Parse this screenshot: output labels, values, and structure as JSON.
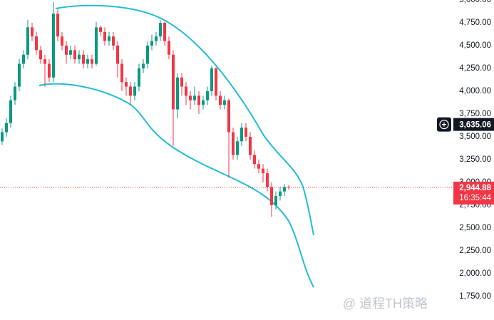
{
  "chart_data": {
    "type": "candlestick",
    "up_color": "#089981",
    "down_color": "#f23645",
    "ylim": [
      1490,
      5000
    ],
    "yticks": [
      {
        "value": 5000,
        "label": "5,000.00"
      },
      {
        "value": 4750,
        "label": "4,750.00"
      },
      {
        "value": 4500,
        "label": "4,500.00"
      },
      {
        "value": 4250,
        "label": "4,250.00"
      },
      {
        "value": 4000,
        "label": "4,000.00"
      },
      {
        "value": 3750,
        "label": "3,750.00"
      },
      {
        "value": 3500,
        "label": "3,500.00"
      },
      {
        "value": 3250,
        "label": "3,250.00"
      },
      {
        "value": 3000,
        "label": "3,000.00"
      },
      {
        "value": 2750,
        "label": "2,750.00"
      },
      {
        "value": 2500,
        "label": "2,500.00"
      },
      {
        "value": 2250,
        "label": "2,250.00"
      },
      {
        "value": 2000,
        "label": "2,000.00"
      },
      {
        "value": 1750,
        "label": "1,750.00"
      }
    ],
    "open": [
      3450,
      3550,
      3650,
      3900,
      4050,
      4300,
      4400,
      4700,
      4600,
      4450,
      4350,
      4300,
      4150,
      4850,
      4600,
      4500,
      4400,
      4450,
      4350,
      4400,
      4300,
      4350,
      4300,
      4700,
      4650,
      4550,
      4600,
      4500,
      4300,
      4100,
      4050,
      3950,
      4050,
      4250,
      4300,
      4500,
      4550,
      4600,
      4750,
      4550,
      4400,
      3800,
      4150,
      4050,
      3950,
      3900,
      3950,
      3850,
      3900,
      4000,
      4250,
      3950,
      3850,
      3900,
      3550,
      3300,
      3450,
      3600,
      3500,
      3300,
      3200,
      3150,
      3100,
      2950,
      2750,
      2850,
      2900,
      2950
    ],
    "high": [
      3590,
      3700,
      3950,
      4100,
      4350,
      4450,
      4780,
      4750,
      4650,
      4500,
      4400,
      4350,
      4980,
      4900,
      4650,
      4550,
      4500,
      4500,
      4450,
      4450,
      4400,
      4400,
      4760,
      4720,
      4700,
      4650,
      4650,
      4550,
      4350,
      4150,
      4100,
      4100,
      4300,
      4350,
      4550,
      4620,
      4650,
      4780,
      4760,
      4600,
      4450,
      4200,
      4200,
      4100,
      4000,
      4050,
      4000,
      3950,
      4050,
      4280,
      4260,
      4000,
      3950,
      3920,
      3600,
      3500,
      3650,
      3650,
      3550,
      3350,
      3250,
      3200,
      3150,
      3000,
      2900,
      2950,
      2980,
      2970
    ],
    "low": [
      3410,
      3500,
      3600,
      3850,
      4000,
      4250,
      4350,
      4550,
      4400,
      4300,
      4050,
      4100,
      4100,
      4550,
      4450,
      4300,
      4350,
      4300,
      4300,
      4250,
      4250,
      4250,
      4280,
      4600,
      4500,
      4500,
      4450,
      4150,
      4000,
      3950,
      3850,
      3900,
      4000,
      4200,
      4250,
      4450,
      4500,
      4550,
      4500,
      4350,
      3400,
      3700,
      3950,
      3850,
      3800,
      3850,
      3750,
      3800,
      3850,
      3950,
      3900,
      3800,
      3800,
      3050,
      3250,
      3250,
      3400,
      3450,
      3250,
      3150,
      3100,
      3000,
      2900,
      2620,
      2700,
      2800,
      2850,
      2920
    ],
    "close": [
      3550,
      3650,
      3900,
      4050,
      4300,
      4400,
      4700,
      4600,
      4450,
      4350,
      4300,
      4150,
      4850,
      4600,
      4500,
      4400,
      4450,
      4350,
      4400,
      4300,
      4350,
      4300,
      4700,
      4650,
      4550,
      4600,
      4500,
      4300,
      4100,
      4050,
      3950,
      4050,
      4250,
      4300,
      4500,
      4550,
      4600,
      4750,
      4550,
      4400,
      3800,
      4150,
      4050,
      3950,
      3900,
      3950,
      3850,
      3900,
      4000,
      4250,
      3950,
      3850,
      3900,
      3550,
      3300,
      3450,
      3600,
      3500,
      3300,
      3200,
      3150,
      3100,
      2950,
      2750,
      2850,
      2900,
      2950,
      2944.88
    ],
    "last_price": {
      "value": 2944.88,
      "label": "2,944.88"
    },
    "countdown": "16:35:44",
    "crosshair_price": {
      "value": 3635.06,
      "label": "3,635.06"
    },
    "watermark": "@ 道程TH策略"
  }
}
